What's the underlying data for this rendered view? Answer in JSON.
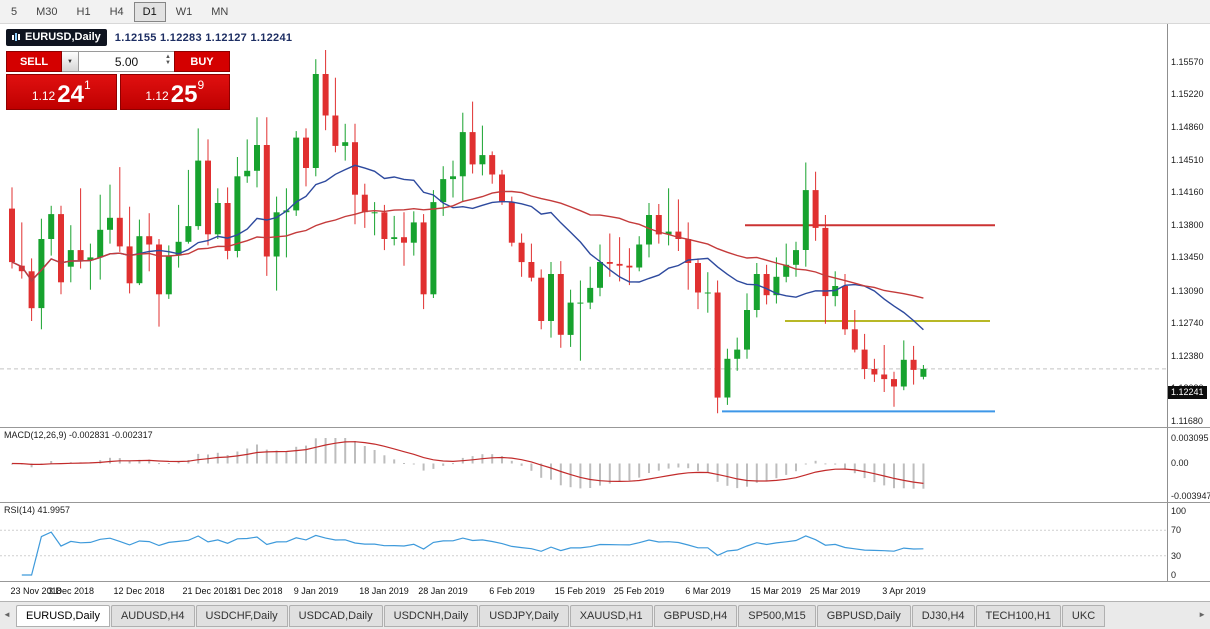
{
  "colors": {
    "candle_up": "#17A22E",
    "candle_down": "#E03030",
    "macd_hist": "#BDBDBD",
    "macd_signal": "#C22B2B",
    "rsi_line": "#3E9ADB",
    "trade_red": "#D40000",
    "badge_bg": "#0C0C0C"
  },
  "icons": {
    "dropdown_caret": "▼",
    "spinner_up": "▲",
    "spinner_down": "▼",
    "tab_scroll_left": "◄",
    "tab_scroll_right": "►"
  },
  "toolbar": {
    "timeframes": [
      "5",
      "M30",
      "H1",
      "H4",
      "D1",
      "W1",
      "MN"
    ],
    "active": "D1"
  },
  "chart": {
    "title": "EURUSD,Daily",
    "ohlc": "1.12155 1.12283 1.12127 1.12241",
    "current_price_label": "1.12241"
  },
  "trade": {
    "sell_label": "SELL",
    "buy_label": "BUY",
    "volume": "5.00",
    "bid": {
      "prefix": "1.12",
      "big": "24",
      "sup": "1"
    },
    "ask": {
      "prefix": "1.12",
      "big": "25",
      "sup": "9"
    }
  },
  "macd": {
    "label": "MACD(12,26,9) -0.002831 -0.002317",
    "ticks": [
      "0.003095",
      "0.00",
      "-0.003947"
    ]
  },
  "rsi": {
    "label": "RSI(14) 41.9957",
    "ticks": [
      "100",
      "70",
      "30",
      "0"
    ]
  },
  "tabs": {
    "active_index": 0,
    "items": [
      "EURUSD,Daily",
      "AUDUSD,H4",
      "USDCHF,Daily",
      "USDCAD,Daily",
      "USDCNH,Daily",
      "USDJPY,Daily",
      "XAUUSD,H1",
      "GBPUSD,H4",
      "SP500,M15",
      "GBPUSD,Daily",
      "DJ30,H4",
      "TECH100,H1",
      "UKC"
    ]
  },
  "chart_data": {
    "type": "candlestick",
    "symbol": "EURUSD",
    "period": "Daily",
    "title": "EURUSD,Daily",
    "ylim": [
      1.1168,
      1.1557
    ],
    "price_ticks": [
      "1.15570",
      "1.15220",
      "1.14860",
      "1.14510",
      "1.14160",
      "1.13800",
      "1.13450",
      "1.13090",
      "1.12740",
      "1.12380",
      "1.12030",
      "1.11680"
    ],
    "current_price": 1.12241,
    "date_ticks": [
      {
        "i": 0,
        "label": "23 Nov 2018"
      },
      {
        "i": 6,
        "label": "3 Dec 2018"
      },
      {
        "i": 13,
        "label": "12 Dec 2018"
      },
      {
        "i": 20,
        "label": "21 Dec 2018"
      },
      {
        "i": 25,
        "label": "31 Dec 2018"
      },
      {
        "i": 31,
        "label": "9 Jan 2019"
      },
      {
        "i": 38,
        "label": "18 Jan 2019"
      },
      {
        "i": 44,
        "label": "28 Jan 2019"
      },
      {
        "i": 51,
        "label": "6 Feb 2019"
      },
      {
        "i": 58,
        "label": "15 Feb 2019"
      },
      {
        "i": 64,
        "label": "25 Feb 2019"
      },
      {
        "i": 71,
        "label": "6 Mar 2019"
      },
      {
        "i": 78,
        "label": "15 Mar 2019"
      },
      {
        "i": 84,
        "label": "25 Mar 2019"
      },
      {
        "i": 91,
        "label": "3 Apr 2019"
      }
    ],
    "candles": [
      [
        1.1398,
        1.1421,
        1.1333,
        1.134
      ],
      [
        1.1336,
        1.1383,
        1.1322,
        1.133
      ],
      [
        1.133,
        1.1344,
        1.1276,
        1.129
      ],
      [
        1.129,
        1.1387,
        1.1267,
        1.1365
      ],
      [
        1.1365,
        1.1401,
        1.1347,
        1.1392
      ],
      [
        1.1392,
        1.1401,
        1.1305,
        1.1318
      ],
      [
        1.1335,
        1.138,
        1.1318,
        1.1353
      ],
      [
        1.1353,
        1.142,
        1.1333,
        1.1342
      ],
      [
        1.1342,
        1.136,
        1.131,
        1.1345
      ],
      [
        1.1345,
        1.1413,
        1.1321,
        1.1375
      ],
      [
        1.1375,
        1.1424,
        1.136,
        1.1388
      ],
      [
        1.1388,
        1.1443,
        1.1351,
        1.1357
      ],
      [
        1.1357,
        1.14,
        1.1306,
        1.1317
      ],
      [
        1.1317,
        1.1386,
        1.1315,
        1.1368
      ],
      [
        1.1368,
        1.1393,
        1.133,
        1.1359
      ],
      [
        1.1359,
        1.1365,
        1.127,
        1.1305
      ],
      [
        1.1305,
        1.1358,
        1.13,
        1.1347
      ],
      [
        1.1347,
        1.1402,
        1.1334,
        1.1362
      ],
      [
        1.1362,
        1.144,
        1.136,
        1.1379
      ],
      [
        1.1379,
        1.1485,
        1.1375,
        1.145
      ],
      [
        1.145,
        1.1473,
        1.1358,
        1.137
      ],
      [
        1.137,
        1.142,
        1.1365,
        1.1404
      ],
      [
        1.1404,
        1.1421,
        1.1343,
        1.1352
      ],
      [
        1.1352,
        1.1454,
        1.1345,
        1.1433
      ],
      [
        1.1433,
        1.1473,
        1.1426,
        1.1439
      ],
      [
        1.1439,
        1.1497,
        1.1421,
        1.1467
      ],
      [
        1.1467,
        1.1497,
        1.1325,
        1.1346
      ],
      [
        1.1346,
        1.1411,
        1.1309,
        1.1394
      ],
      [
        1.1394,
        1.142,
        1.1345,
        1.1396
      ],
      [
        1.1396,
        1.1482,
        1.139,
        1.1475
      ],
      [
        1.1475,
        1.1485,
        1.1422,
        1.1442
      ],
      [
        1.1442,
        1.156,
        1.1433,
        1.1544
      ],
      [
        1.1544,
        1.157,
        1.1483,
        1.1499
      ],
      [
        1.1499,
        1.154,
        1.1459,
        1.1466
      ],
      [
        1.1466,
        1.149,
        1.145,
        1.147
      ],
      [
        1.147,
        1.149,
        1.1381,
        1.1413
      ],
      [
        1.1413,
        1.1425,
        1.1377,
        1.1394
      ],
      [
        1.1394,
        1.1405,
        1.1369,
        1.1394
      ],
      [
        1.1394,
        1.1402,
        1.1353,
        1.1365
      ],
      [
        1.1365,
        1.139,
        1.1358,
        1.1367
      ],
      [
        1.1367,
        1.1394,
        1.1336,
        1.1361
      ],
      [
        1.1361,
        1.1395,
        1.1347,
        1.1383
      ],
      [
        1.1383,
        1.1392,
        1.1289,
        1.1305
      ],
      [
        1.1305,
        1.1418,
        1.1301,
        1.1405
      ],
      [
        1.1405,
        1.1444,
        1.139,
        1.143
      ],
      [
        1.143,
        1.145,
        1.141,
        1.1433
      ],
      [
        1.1433,
        1.1502,
        1.1405,
        1.1481
      ],
      [
        1.1481,
        1.1514,
        1.1436,
        1.1446
      ],
      [
        1.1446,
        1.1488,
        1.1434,
        1.1456
      ],
      [
        1.1456,
        1.146,
        1.1425,
        1.1435
      ],
      [
        1.1435,
        1.144,
        1.1402,
        1.1405
      ],
      [
        1.1405,
        1.1411,
        1.1357,
        1.1361
      ],
      [
        1.1361,
        1.1371,
        1.1324,
        1.134
      ],
      [
        1.134,
        1.136,
        1.1319,
        1.1323
      ],
      [
        1.1323,
        1.1332,
        1.1267,
        1.1276
      ],
      [
        1.1276,
        1.134,
        1.1258,
        1.1327
      ],
      [
        1.1327,
        1.1341,
        1.1247,
        1.1261
      ],
      [
        1.1261,
        1.131,
        1.1248,
        1.1296
      ],
      [
        1.1296,
        1.132,
        1.1233,
        1.1296
      ],
      [
        1.1296,
        1.1335,
        1.1289,
        1.1312
      ],
      [
        1.1312,
        1.1359,
        1.1303,
        1.134
      ],
      [
        1.134,
        1.1371,
        1.1324,
        1.1338
      ],
      [
        1.1338,
        1.1367,
        1.1319,
        1.1336
      ],
      [
        1.1336,
        1.1355,
        1.1315,
        1.1334
      ],
      [
        1.1334,
        1.1368,
        1.133,
        1.1359
      ],
      [
        1.1359,
        1.1404,
        1.1345,
        1.1391
      ],
      [
        1.1391,
        1.1403,
        1.136,
        1.137
      ],
      [
        1.137,
        1.142,
        1.1358,
        1.1373
      ],
      [
        1.1373,
        1.1408,
        1.1352,
        1.1365
      ],
      [
        1.1365,
        1.1383,
        1.131,
        1.1339
      ],
      [
        1.1339,
        1.1344,
        1.1289,
        1.1307
      ],
      [
        1.1307,
        1.1329,
        1.1285,
        1.1307
      ],
      [
        1.1307,
        1.132,
        1.1176,
        1.1193
      ],
      [
        1.1193,
        1.1246,
        1.1185,
        1.1235
      ],
      [
        1.1235,
        1.1258,
        1.1222,
        1.1245
      ],
      [
        1.1245,
        1.1306,
        1.1235,
        1.1288
      ],
      [
        1.1288,
        1.1339,
        1.128,
        1.1327
      ],
      [
        1.1327,
        1.1337,
        1.1294,
        1.1304
      ],
      [
        1.1304,
        1.1345,
        1.1295,
        1.1324
      ],
      [
        1.1324,
        1.136,
        1.1318,
        1.1337
      ],
      [
        1.1337,
        1.1362,
        1.1324,
        1.1353
      ],
      [
        1.1353,
        1.1448,
        1.1335,
        1.1418
      ],
      [
        1.1418,
        1.1438,
        1.1363,
        1.1377
      ],
      [
        1.1377,
        1.1391,
        1.1273,
        1.1303
      ],
      [
        1.1303,
        1.133,
        1.1292,
        1.1314
      ],
      [
        1.1314,
        1.1327,
        1.1261,
        1.1267
      ],
      [
        1.1267,
        1.1288,
        1.1242,
        1.1245
      ],
      [
        1.1245,
        1.1262,
        1.1213,
        1.1224
      ],
      [
        1.1224,
        1.1235,
        1.121,
        1.1218
      ],
      [
        1.1218,
        1.125,
        1.1199,
        1.1213
      ],
      [
        1.1213,
        1.1221,
        1.1183,
        1.1205
      ],
      [
        1.1205,
        1.1255,
        1.1201,
        1.1234
      ],
      [
        1.1234,
        1.1249,
        1.1207,
        1.1223
      ],
      [
        1.12155,
        1.12283,
        1.12127,
        1.12241
      ]
    ],
    "overlays": [
      {
        "name": "ma-fast",
        "type": "sma",
        "period": 13,
        "color": "#2E4A9E"
      },
      {
        "name": "ma-slow",
        "type": "sma",
        "period": 34,
        "color": "#C43B3B"
      }
    ],
    "hlines": [
      {
        "name": "resistance-line",
        "price": 1.138,
        "color": "#CC3333",
        "x1": 745,
        "x2": 995
      },
      {
        "name": "median-line",
        "price": 1.1276,
        "color": "#B8B826",
        "x1": 785,
        "x2": 990
      },
      {
        "name": "support-line",
        "price": 1.1178,
        "color": "#3E97E8",
        "x1": 722,
        "x2": 995
      }
    ],
    "indicators": [
      {
        "name": "MACD",
        "params": [
          12,
          26,
          9
        ],
        "last_values": [
          -0.002831,
          -0.002317
        ],
        "scale": [
          -0.003947,
          0.003095
        ]
      },
      {
        "name": "RSI",
        "params": [
          14
        ],
        "last_value": 41.9957,
        "scale": [
          0,
          100
        ],
        "levels": [
          70,
          30
        ]
      }
    ],
    "macd_scale": [
      -0.003947,
      0.003095
    ],
    "rsi_levels": [
      70,
      30
    ]
  }
}
